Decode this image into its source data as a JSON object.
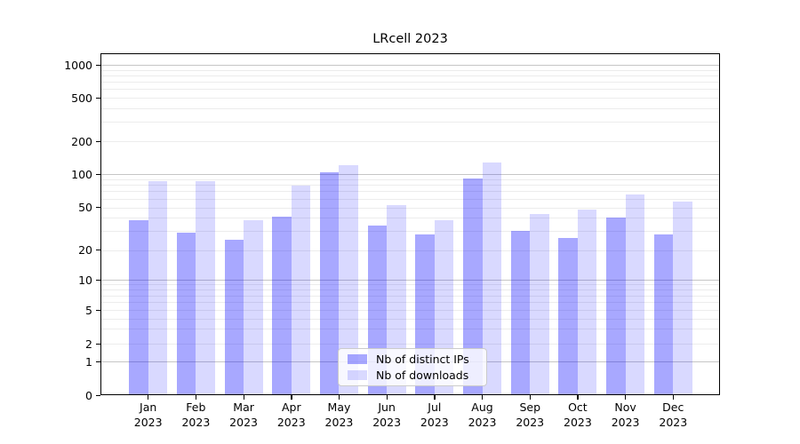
{
  "chart_data": {
    "type": "bar",
    "title": "LRcell 2023",
    "yscale": "symlog",
    "grid": "both-major-and-minor",
    "legend_position": "lower center",
    "categories": [
      "Jan 2023",
      "Feb 2023",
      "Mar 2023",
      "Apr 2023",
      "May 2023",
      "Jun 2023",
      "Jul 2023",
      "Aug 2023",
      "Sep 2023",
      "Oct 2023",
      "Nov 2023",
      "Dec 2023"
    ],
    "x_tick_labels": [
      [
        "Jan",
        "2023"
      ],
      [
        "Feb",
        "2023"
      ],
      [
        "Mar",
        "2023"
      ],
      [
        "Apr",
        "2023"
      ],
      [
        "May",
        "2023"
      ],
      [
        "Jun",
        "2023"
      ],
      [
        "Jul",
        "2023"
      ],
      [
        "Aug",
        "2023"
      ],
      [
        "Sep",
        "2023"
      ],
      [
        "Oct",
        "2023"
      ],
      [
        "Nov",
        "2023"
      ],
      [
        "Dec",
        "2023"
      ]
    ],
    "y_tick_labels": [
      "1000",
      "500",
      "200",
      "100",
      "50",
      "20",
      "10",
      "5",
      "2",
      "1",
      "0"
    ],
    "y_tick_values": [
      1000,
      500,
      200,
      100,
      50,
      20,
      10,
      5,
      2,
      1,
      0
    ],
    "ylim": [
      0,
      1400
    ],
    "series": [
      {
        "name": "Nb of distinct IPs",
        "color": "rgba(0,0,255,0.34)",
        "values": [
          38,
          29,
          25,
          41,
          104,
          34,
          28,
          92,
          30,
          26,
          40,
          28
        ]
      },
      {
        "name": "Nb of downloads",
        "color": "rgba(0,0,255,0.15)",
        "values": [
          87,
          87,
          38,
          79,
          120,
          52,
          38,
          128,
          43,
          48,
          65,
          56
        ]
      }
    ]
  }
}
